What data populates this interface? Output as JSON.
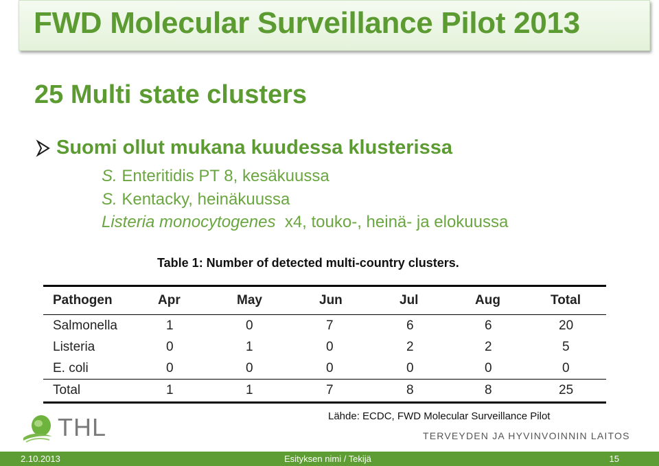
{
  "slide": {
    "title": "FWD Molecular Surveillance Pilot 2013",
    "subtitle": "25 Multi state clusters",
    "bullet": "Suomi ollut mukana kuudessa klusterissa",
    "items": [
      {
        "italic": "S.",
        "text": " Enteritidis PT 8, kesäkuussa"
      },
      {
        "italic": "S.",
        "text": " Kentacky, heinäkuussa"
      },
      {
        "italic": "Listeria monocytogenes",
        "text": "  x4, touko-, heinä- ja elokuussa"
      }
    ],
    "icons": {
      "bullet": "arrow-bullet-icon",
      "logo": "thl-leaf-icon"
    },
    "colors": {
      "accent": "#5c9b32",
      "footer": "#5e9d33"
    }
  },
  "table": {
    "caption": "Table 1: Number of detected multi-country clusters.",
    "headers": [
      "Pathogen",
      "Apr",
      "May",
      "Jun",
      "Jul",
      "Aug",
      "Total"
    ],
    "rows": [
      [
        "Salmonella",
        "1",
        "0",
        "7",
        "6",
        "6",
        "20"
      ],
      [
        "Listeria",
        "0",
        "1",
        "0",
        "2",
        "2",
        "5"
      ],
      [
        "E. coli",
        "0",
        "0",
        "0",
        "0",
        "0",
        "0"
      ],
      [
        "Total",
        "1",
        "1",
        "7",
        "8",
        "8",
        "25"
      ]
    ]
  },
  "source": "Lähde: ECDC, FWD Molecular Surveillance Pilot",
  "logo": {
    "text": "THL",
    "org": "TERVEYDEN JA HYVINVOINNIN LAITOS"
  },
  "footer": {
    "date": "2.10.2013",
    "center": "Esityksen nimi / Tekijä",
    "page": "15"
  }
}
